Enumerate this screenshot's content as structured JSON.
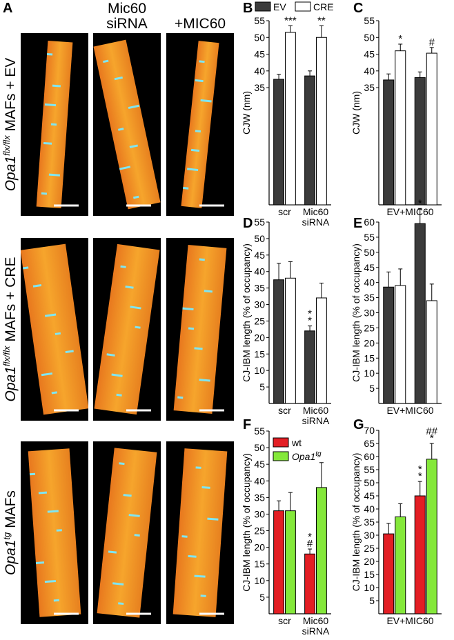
{
  "panel_a": {
    "label": "A",
    "column_headers": [
      "Mic60 siRNA",
      "+MIC60"
    ],
    "rows": [
      {
        "gene": "Opa1",
        "superscript": "flx/flx",
        "rest": "MAFs + EV"
      },
      {
        "gene": "Opa1",
        "superscript": "flx/flx",
        "rest": "MAFs + CRE"
      },
      {
        "gene": "Opa1",
        "superscript": "tg",
        "rest": "MAFs"
      }
    ]
  },
  "chart_data": [
    {
      "type": "bar",
      "label": "B",
      "ylabel": "CJW (nm)",
      "categories": [
        "scr",
        "Mic60 siRNA"
      ],
      "ylim": [
        0,
        55
      ],
      "yticks": [
        35,
        40,
        45,
        50,
        55
      ],
      "legend": "top",
      "series": [
        {
          "name": "EV",
          "color": "#3b3b3b",
          "values": [
            37.5,
            38.5
          ],
          "errors": [
            1.5,
            1.5
          ]
        },
        {
          "name": "CRE",
          "color": "#ffffff",
          "values": [
            51.5,
            50
          ],
          "errors": [
            2,
            3.5
          ],
          "annotations": [
            [
              "***"
            ],
            [
              "**"
            ]
          ]
        }
      ]
    },
    {
      "type": "bar",
      "label": "C",
      "ylabel": "CJW (nm)",
      "categories": [
        null,
        null
      ],
      "xlabel": "EV+MIC60",
      "ylim": [
        0,
        55
      ],
      "yticks": [
        35,
        40,
        45,
        50,
        55
      ],
      "series": [
        {
          "name": "EV",
          "color": "#3b3b3b",
          "values": [
            37.3,
            38
          ],
          "errors": [
            1.8,
            1.7
          ]
        },
        {
          "name": "CRE",
          "color": "#ffffff",
          "values": [
            46,
            45.3
          ],
          "errors": [
            2,
            1.7
          ],
          "annotations": [
            [
              "*"
            ],
            [
              "#"
            ]
          ]
        }
      ]
    },
    {
      "type": "bar",
      "label": "D",
      "ylabel": "CJ-IBM length (% of occupancy)",
      "categories": [
        "scr",
        "Mic60 siRNA"
      ],
      "ylim": [
        0,
        55
      ],
      "yticks": [
        5,
        10,
        15,
        20,
        25,
        30,
        35,
        40,
        45,
        50,
        55
      ],
      "series": [
        {
          "name": "EV",
          "color": "#3b3b3b",
          "values": [
            37.5,
            22
          ],
          "errors": [
            5,
            1.5
          ],
          "annotations": [
            null,
            [
              "*",
              "*"
            ]
          ]
        },
        {
          "name": "CRE",
          "color": "#ffffff",
          "values": [
            38,
            32
          ],
          "errors": [
            5,
            4.5
          ]
        }
      ]
    },
    {
      "type": "bar",
      "label": "E",
      "ylabel": "CJ-IBM length (% of occupancy)",
      "categories": [
        null,
        null
      ],
      "xlabel": "EV+MIC60",
      "ylim": [
        0,
        60
      ],
      "yticks": [
        5,
        10,
        15,
        20,
        25,
        30,
        35,
        40,
        45,
        50,
        55,
        60
      ],
      "series": [
        {
          "name": "EV",
          "color": "#3b3b3b",
          "values": [
            38.5,
            59.5
          ],
          "errors": [
            5,
            5
          ],
          "annotations": [
            null,
            [
              "*"
            ]
          ]
        },
        {
          "name": "CRE",
          "color": "#ffffff",
          "values": [
            39,
            34
          ],
          "errors": [
            5.5,
            5.5
          ]
        }
      ]
    },
    {
      "type": "bar",
      "label": "F",
      "ylabel": "CJ-IBM length (% of occupancy)",
      "categories": [
        "scr",
        "Mic60 siRNA"
      ],
      "ylim": [
        0,
        55
      ],
      "yticks": [
        5,
        10,
        15,
        20,
        25,
        30,
        35,
        40,
        45,
        50,
        55
      ],
      "legend": "upper left",
      "series": [
        {
          "name": "wt",
          "color": "#e31e24",
          "values": [
            31,
            18
          ],
          "errors": [
            3,
            1.5
          ],
          "annotations": [
            null,
            [
              "*",
              "#"
            ]
          ]
        },
        {
          "name": "Opa1",
          "name_superscript": "tg",
          "color": "#84e83a",
          "values": [
            31,
            38
          ],
          "errors": [
            5.5,
            7.5
          ]
        }
      ]
    },
    {
      "type": "bar",
      "label": "G",
      "ylabel": "CJ-IBM length (% of occupancy)",
      "categories": [
        null,
        null
      ],
      "xlabel": "EV+MIC60",
      "ylim": [
        0,
        70
      ],
      "yticks": [
        5,
        10,
        15,
        20,
        25,
        30,
        35,
        40,
        45,
        50,
        55,
        60,
        65,
        70
      ],
      "series": [
        {
          "name": "wt",
          "color": "#e31e24",
          "values": [
            30.5,
            45
          ],
          "errors": [
            4,
            5.5
          ],
          "annotations": [
            null,
            [
              "*",
              "*"
            ]
          ]
        },
        {
          "name": "Opa1",
          "name_superscript": "tg",
          "color": "#84e83a",
          "values": [
            37,
            59
          ],
          "errors": [
            5,
            6
          ],
          "annotations": [
            null,
            [
              "##",
              "*"
            ]
          ]
        }
      ]
    }
  ]
}
